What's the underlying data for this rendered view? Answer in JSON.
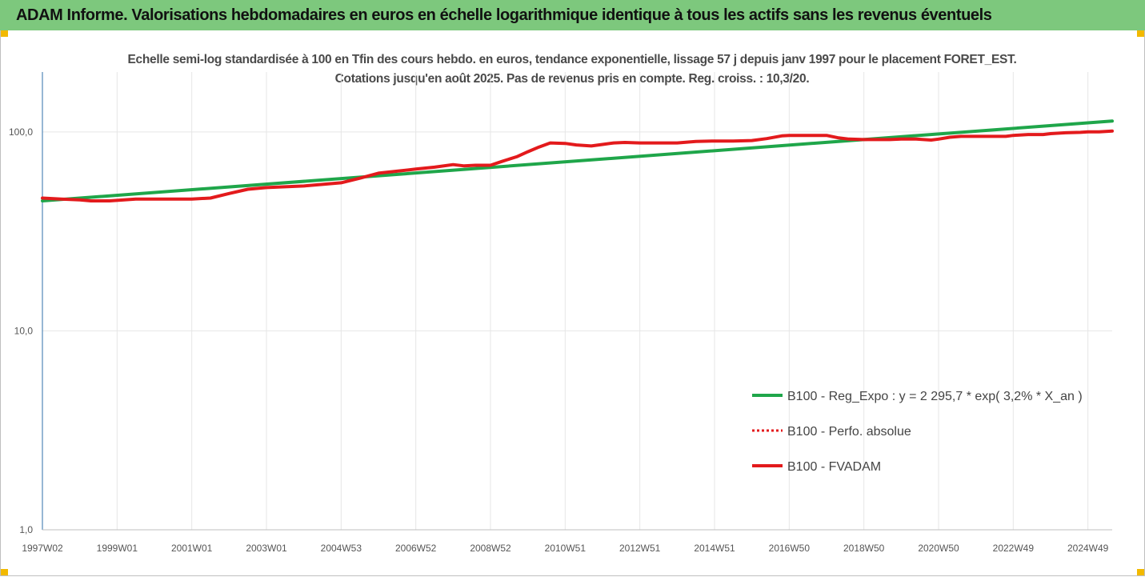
{
  "header": {
    "title": "ADAM Informe. Valorisations hebdomadaires en euros en échelle logarithmique identique à tous les actifs sans les revenus éventuels"
  },
  "chart_data": {
    "type": "line",
    "title": "Echelle semi-log standardisée à 100 en Tfin des cours hebdo. en euros, tendance exponentielle, lissage 57 j depuis janv 1997 pour le placement FORET_EST. Cotations jusqu'en août 2025. Pas de revenus pris en compte. Reg. croiss. : 10,3/20.",
    "yscale": "log",
    "ylim": [
      1,
      200
    ],
    "yticks": [
      1,
      10,
      100
    ],
    "ytick_labels": [
      "1,0",
      "10,0",
      "100,0"
    ],
    "xlim": [
      1997.0,
      2025.65
    ],
    "xtick_labels": [
      "1997W02",
      "1999W01",
      "2001W01",
      "2003W01",
      "2004W53",
      "2006W52",
      "2008W52",
      "2010W51",
      "2012W51",
      "2014W51",
      "2016W50",
      "2018W50",
      "2020W50",
      "2022W49",
      "2024W49"
    ],
    "xtick_positions": [
      1997.0,
      1999.0,
      2001.0,
      2003.0,
      2005.0,
      2007.0,
      2009.0,
      2011.0,
      2013.0,
      2015.0,
      2017.0,
      2019.0,
      2021.0,
      2023.0,
      2025.0
    ],
    "grid": "vertical",
    "legend_position": "right",
    "series": [
      {
        "name": "B100 - Reg_Expo : y = 2 295,7 * exp( 3,2% *  X_an )",
        "color": "#1fa64a",
        "style": "solid",
        "x": [
          1997.0,
          2025.65
        ],
        "y": [
          45.0,
          113.5
        ]
      },
      {
        "name": "B100 - Perfo. absolue",
        "color": "#e31a1c",
        "style": "dotted",
        "x": [],
        "y": []
      },
      {
        "name": "B100 - FVADAM",
        "color": "#e31a1c",
        "style": "solid",
        "x": [
          1997.0,
          1997.5,
          1998.0,
          1998.3,
          1998.8,
          1999.5,
          2000.0,
          2000.5,
          2001.0,
          2001.5,
          2002.0,
          2002.5,
          2003.0,
          2003.5,
          2004.0,
          2004.5,
          2005.0,
          2005.5,
          2006.0,
          2006.5,
          2007.0,
          2007.5,
          2008.0,
          2008.3,
          2008.6,
          2009.0,
          2009.3,
          2009.7,
          2010.0,
          2010.3,
          2010.6,
          2011.0,
          2011.3,
          2011.7,
          2012.0,
          2012.3,
          2012.6,
          2013.0,
          2013.5,
          2014.0,
          2014.5,
          2015.0,
          2015.5,
          2016.0,
          2016.4,
          2016.8,
          2017.0,
          2017.5,
          2018.0,
          2018.3,
          2018.6,
          2019.0,
          2019.3,
          2019.7,
          2020.0,
          2020.4,
          2020.8,
          2021.0,
          2021.3,
          2021.6,
          2022.0,
          2022.4,
          2022.8,
          2023.0,
          2023.4,
          2023.8,
          2024.0,
          2024.4,
          2024.8,
          2025.0,
          2025.3,
          2025.65
        ],
        "y": [
          46.5,
          46.0,
          45.5,
          45.0,
          45.0,
          46.0,
          46.0,
          46.0,
          46.0,
          46.5,
          49.0,
          51.5,
          52.5,
          53.0,
          53.5,
          54.5,
          55.5,
          58.5,
          62.0,
          63.5,
          65.0,
          66.5,
          68.5,
          67.5,
          68.0,
          68.0,
          71.0,
          75.0,
          79.5,
          84.0,
          88.0,
          87.5,
          86.0,
          85.0,
          86.5,
          88.0,
          88.5,
          88.0,
          88.0,
          88.0,
          89.5,
          90.0,
          90.0,
          90.5,
          92.5,
          95.5,
          96.0,
          96.0,
          96.0,
          93.5,
          92.0,
          91.5,
          91.5,
          91.5,
          92.0,
          92.0,
          91.0,
          92.0,
          94.0,
          95.0,
          95.0,
          95.0,
          95.0,
          96.0,
          97.0,
          97.0,
          98.0,
          99.0,
          99.5,
          100.0,
          100.0,
          101.0
        ]
      }
    ]
  }
}
